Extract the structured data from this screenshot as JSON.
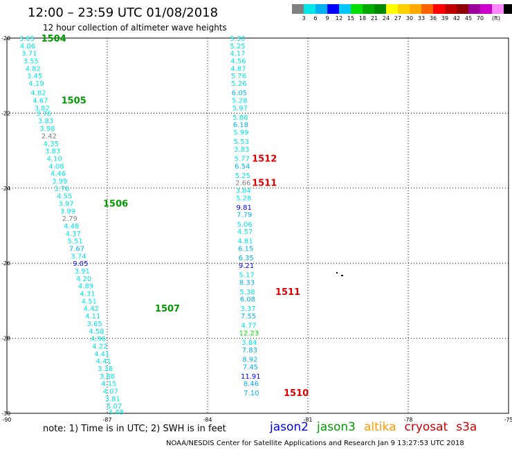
{
  "title": "12:00 – 23:59 UTC 01/08/2018",
  "subtitle": "12 hour collection of altimeter wave heights",
  "colorbar": {
    "colors": [
      "#808080",
      "#00e5e5",
      "#00b0f0",
      "#0000ff",
      "#00c8ff",
      "#00dd00",
      "#00aa00",
      "#008800",
      "#ffff00",
      "#ffd000",
      "#ffaa00",
      "#ff6000",
      "#ff0000",
      "#c00000",
      "#900000",
      "#990099",
      "#cc00cc",
      "#ff88ff",
      "#000000"
    ],
    "ticks": [
      "3",
      "6",
      "9",
      "12",
      "15",
      "18",
      "21",
      "24",
      "27",
      "30",
      "33",
      "36",
      "39",
      "42",
      "45",
      "70",
      "(ft)"
    ]
  },
  "note": "note: 1) Time is in UTC; 2) SWH is in feet",
  "legend": [
    {
      "label": "jason2",
      "color": "#0000ee"
    },
    {
      "label": "jason3",
      "color": "#009900"
    },
    {
      "label": "altika",
      "color": "#ff9900"
    },
    {
      "label": "cryosat",
      "color": "#cc0000"
    },
    {
      "label": "s3a",
      "color": "#cc0000"
    }
  ],
  "credit": "NOAA/NESDIS Center for Satellite Applications and Research    Jan  9 13:27:53 UTC 2018",
  "chart_data": {
    "type": "scatter",
    "xlim": [
      -90,
      -75
    ],
    "ylim": [
      -30,
      -20
    ],
    "xticks": [
      "-90",
      "-87",
      "-84",
      "-81",
      "-78",
      "-75"
    ],
    "yticks": [
      "-20",
      "-22",
      "-24",
      "-26",
      "-28",
      "-30"
    ],
    "grid": true,
    "tracks": [
      {
        "name": "jason3",
        "points": [
          {
            "lon": -89.4,
            "lat": -20.0,
            "v": "3.65"
          },
          {
            "lon": -89.38,
            "lat": -20.2,
            "v": "4.06"
          },
          {
            "lon": -89.33,
            "lat": -20.4,
            "v": "3.71"
          },
          {
            "lon": -89.28,
            "lat": -20.6,
            "v": "3.55"
          },
          {
            "lon": -89.22,
            "lat": -20.8,
            "v": "4.82"
          },
          {
            "lon": -89.17,
            "lat": -21.0,
            "v": "3.45"
          },
          {
            "lon": -89.12,
            "lat": -21.2,
            "v": "4.19"
          },
          {
            "lon": -89.06,
            "lat": -21.45,
            "v": "4.82"
          },
          {
            "lon": -89.0,
            "lat": -21.65,
            "v": "4.67"
          },
          {
            "lon": -88.95,
            "lat": -21.85,
            "v": "3.82"
          },
          {
            "lon": -88.9,
            "lat": -22.0,
            "v": "3.76"
          },
          {
            "lon": -88.84,
            "lat": -22.2,
            "v": "3.83"
          },
          {
            "lon": -88.79,
            "lat": -22.4,
            "v": "3.98"
          },
          {
            "lon": -88.74,
            "lat": -22.6,
            "v": "2.42"
          },
          {
            "lon": -88.68,
            "lat": -22.8,
            "v": "4.35"
          },
          {
            "lon": -88.63,
            "lat": -23.0,
            "v": "3.83"
          },
          {
            "lon": -88.58,
            "lat": -23.2,
            "v": "4.10"
          },
          {
            "lon": -88.52,
            "lat": -23.4,
            "v": "4.08"
          },
          {
            "lon": -88.47,
            "lat": -23.6,
            "v": "4.46"
          },
          {
            "lon": -88.42,
            "lat": -23.8,
            "v": "3.99"
          },
          {
            "lon": -88.36,
            "lat": -24.0,
            "v": "3.76"
          },
          {
            "lon": -88.28,
            "lat": -24.2,
            "v": "4.55"
          },
          {
            "lon": -88.23,
            "lat": -24.4,
            "v": "3.97"
          },
          {
            "lon": -88.18,
            "lat": -24.6,
            "v": "3.99"
          },
          {
            "lon": -88.12,
            "lat": -24.8,
            "v": "2.79"
          },
          {
            "lon": -88.07,
            "lat": -25.0,
            "v": "4.48"
          },
          {
            "lon": -88.02,
            "lat": -25.2,
            "v": "4.37"
          },
          {
            "lon": -87.96,
            "lat": -25.4,
            "v": "5.51"
          },
          {
            "lon": -87.91,
            "lat": -25.6,
            "v": "7.67"
          },
          {
            "lon": -87.86,
            "lat": -25.8,
            "v": "3.74"
          },
          {
            "lon": -87.8,
            "lat": -26.0,
            "v": "9.05"
          },
          {
            "lon": -87.75,
            "lat": -26.2,
            "v": "3.91"
          },
          {
            "lon": -87.7,
            "lat": -26.4,
            "v": "4.20"
          },
          {
            "lon": -87.64,
            "lat": -26.6,
            "v": "4.89"
          },
          {
            "lon": -87.59,
            "lat": -26.8,
            "v": "4.31"
          },
          {
            "lon": -87.54,
            "lat": -27.0,
            "v": "4.51"
          },
          {
            "lon": -87.48,
            "lat": -27.2,
            "v": "4.42"
          },
          {
            "lon": -87.43,
            "lat": -27.4,
            "v": "4.11"
          },
          {
            "lon": -87.38,
            "lat": -27.6,
            "v": "3.65"
          },
          {
            "lon": -87.32,
            "lat": -27.8,
            "v": "4.58"
          },
          {
            "lon": -87.27,
            "lat": -28.0,
            "v": "4.96"
          },
          {
            "lon": -87.22,
            "lat": -28.2,
            "v": "4.22"
          },
          {
            "lon": -87.16,
            "lat": -28.4,
            "v": "4.41"
          },
          {
            "lon": -87.11,
            "lat": -28.6,
            "v": "4.41"
          },
          {
            "lon": -87.06,
            "lat": -28.8,
            "v": "3.38"
          },
          {
            "lon": -87.0,
            "lat": -29.0,
            "v": "3.88"
          },
          {
            "lon": -86.95,
            "lat": -29.2,
            "v": "4.15"
          },
          {
            "lon": -86.9,
            "lat": -29.4,
            "v": "4.07"
          },
          {
            "lon": -86.84,
            "lat": -29.6,
            "v": "3.81"
          },
          {
            "lon": -86.79,
            "lat": -29.8,
            "v": "5.07"
          },
          {
            "lon": -86.74,
            "lat": -29.95,
            "v": "3.48"
          }
        ],
        "labels": [
          {
            "text": "1504",
            "lon": -88.6,
            "lat": -20.0
          },
          {
            "text": "1505",
            "lon": -88.0,
            "lat": -21.65
          },
          {
            "text": "1506",
            "lon": -86.75,
            "lat": -24.4
          },
          {
            "text": "1507",
            "lon": -85.2,
            "lat": -27.2
          }
        ]
      },
      {
        "name": "cryosat",
        "points": [
          {
            "lon": -83.1,
            "lat": -20.0,
            "v": "5.30"
          },
          {
            "lon": -83.1,
            "lat": -20.2,
            "v": "5.25"
          },
          {
            "lon": -83.1,
            "lat": -20.4,
            "v": "4.17"
          },
          {
            "lon": -83.08,
            "lat": -20.6,
            "v": "4.56"
          },
          {
            "lon": -83.08,
            "lat": -20.8,
            "v": "4.87"
          },
          {
            "lon": -83.07,
            "lat": -21.0,
            "v": "5.76"
          },
          {
            "lon": -83.06,
            "lat": -21.2,
            "v": "5.26"
          },
          {
            "lon": -83.05,
            "lat": -21.45,
            "v": "6.05"
          },
          {
            "lon": -83.04,
            "lat": -21.65,
            "v": "5.28"
          },
          {
            "lon": -83.03,
            "lat": -21.85,
            "v": "5.97"
          },
          {
            "lon": -83.02,
            "lat": -22.1,
            "v": "5.88"
          },
          {
            "lon": -83.01,
            "lat": -22.3,
            "v": "6.18"
          },
          {
            "lon": -83.0,
            "lat": -22.5,
            "v": "5.99"
          },
          {
            "lon": -82.99,
            "lat": -22.75,
            "v": "5.53"
          },
          {
            "lon": -82.98,
            "lat": -22.95,
            "v": "3.83"
          },
          {
            "lon": -82.97,
            "lat": -23.2,
            "v": "5.77"
          },
          {
            "lon": -82.96,
            "lat": -23.4,
            "v": "6.54"
          },
          {
            "lon": -82.95,
            "lat": -23.65,
            "v": "5.25"
          },
          {
            "lon": -82.94,
            "lat": -23.85,
            "v": "2.66"
          },
          {
            "lon": -82.93,
            "lat": -24.05,
            "v": "3.84"
          },
          {
            "lon": -82.92,
            "lat": -24.25,
            "v": "5.28"
          },
          {
            "lon": -82.91,
            "lat": -24.5,
            "v": "9.81"
          },
          {
            "lon": -82.9,
            "lat": -24.7,
            "v": "7.79"
          },
          {
            "lon": -82.89,
            "lat": -24.95,
            "v": "5.06"
          },
          {
            "lon": -82.88,
            "lat": -25.15,
            "v": "4.57"
          },
          {
            "lon": -82.87,
            "lat": -25.4,
            "v": "4.81"
          },
          {
            "lon": -82.86,
            "lat": -25.6,
            "v": "6.15"
          },
          {
            "lon": -82.85,
            "lat": -25.85,
            "v": "6.35"
          },
          {
            "lon": -82.84,
            "lat": -26.05,
            "v": "9.21"
          },
          {
            "lon": -82.83,
            "lat": -26.3,
            "v": "5.17"
          },
          {
            "lon": -82.82,
            "lat": -26.5,
            "v": "8.33"
          },
          {
            "lon": -82.81,
            "lat": -26.75,
            "v": "5.38"
          },
          {
            "lon": -82.8,
            "lat": -26.95,
            "v": "6.08"
          },
          {
            "lon": -82.79,
            "lat": -27.2,
            "v": "3.37"
          },
          {
            "lon": -82.78,
            "lat": -27.4,
            "v": "7.55"
          },
          {
            "lon": -82.77,
            "lat": -27.65,
            "v": "4.77"
          },
          {
            "lon": -82.76,
            "lat": -27.85,
            "v": "12.23"
          },
          {
            "lon": -82.75,
            "lat": -28.1,
            "v": "3.84"
          },
          {
            "lon": -82.74,
            "lat": -28.3,
            "v": "7.83"
          },
          {
            "lon": -82.73,
            "lat": -28.55,
            "v": "8.92"
          },
          {
            "lon": -82.72,
            "lat": -28.75,
            "v": "7.45"
          },
          {
            "lon": -82.71,
            "lat": -29.0,
            "v": "11.91"
          },
          {
            "lon": -82.7,
            "lat": -29.2,
            "v": "8.46"
          },
          {
            "lon": -82.69,
            "lat": -29.45,
            "v": "7.10"
          }
        ],
        "labels": [
          {
            "text": "1512",
            "lon": -82.3,
            "lat": -23.2
          },
          {
            "text": "1511",
            "lon": -82.3,
            "lat": -23.85
          },
          {
            "text": "1511",
            "lon": -81.6,
            "lat": -26.75
          },
          {
            "text": "1510",
            "lon": -81.35,
            "lat": -29.45
          }
        ]
      }
    ]
  }
}
